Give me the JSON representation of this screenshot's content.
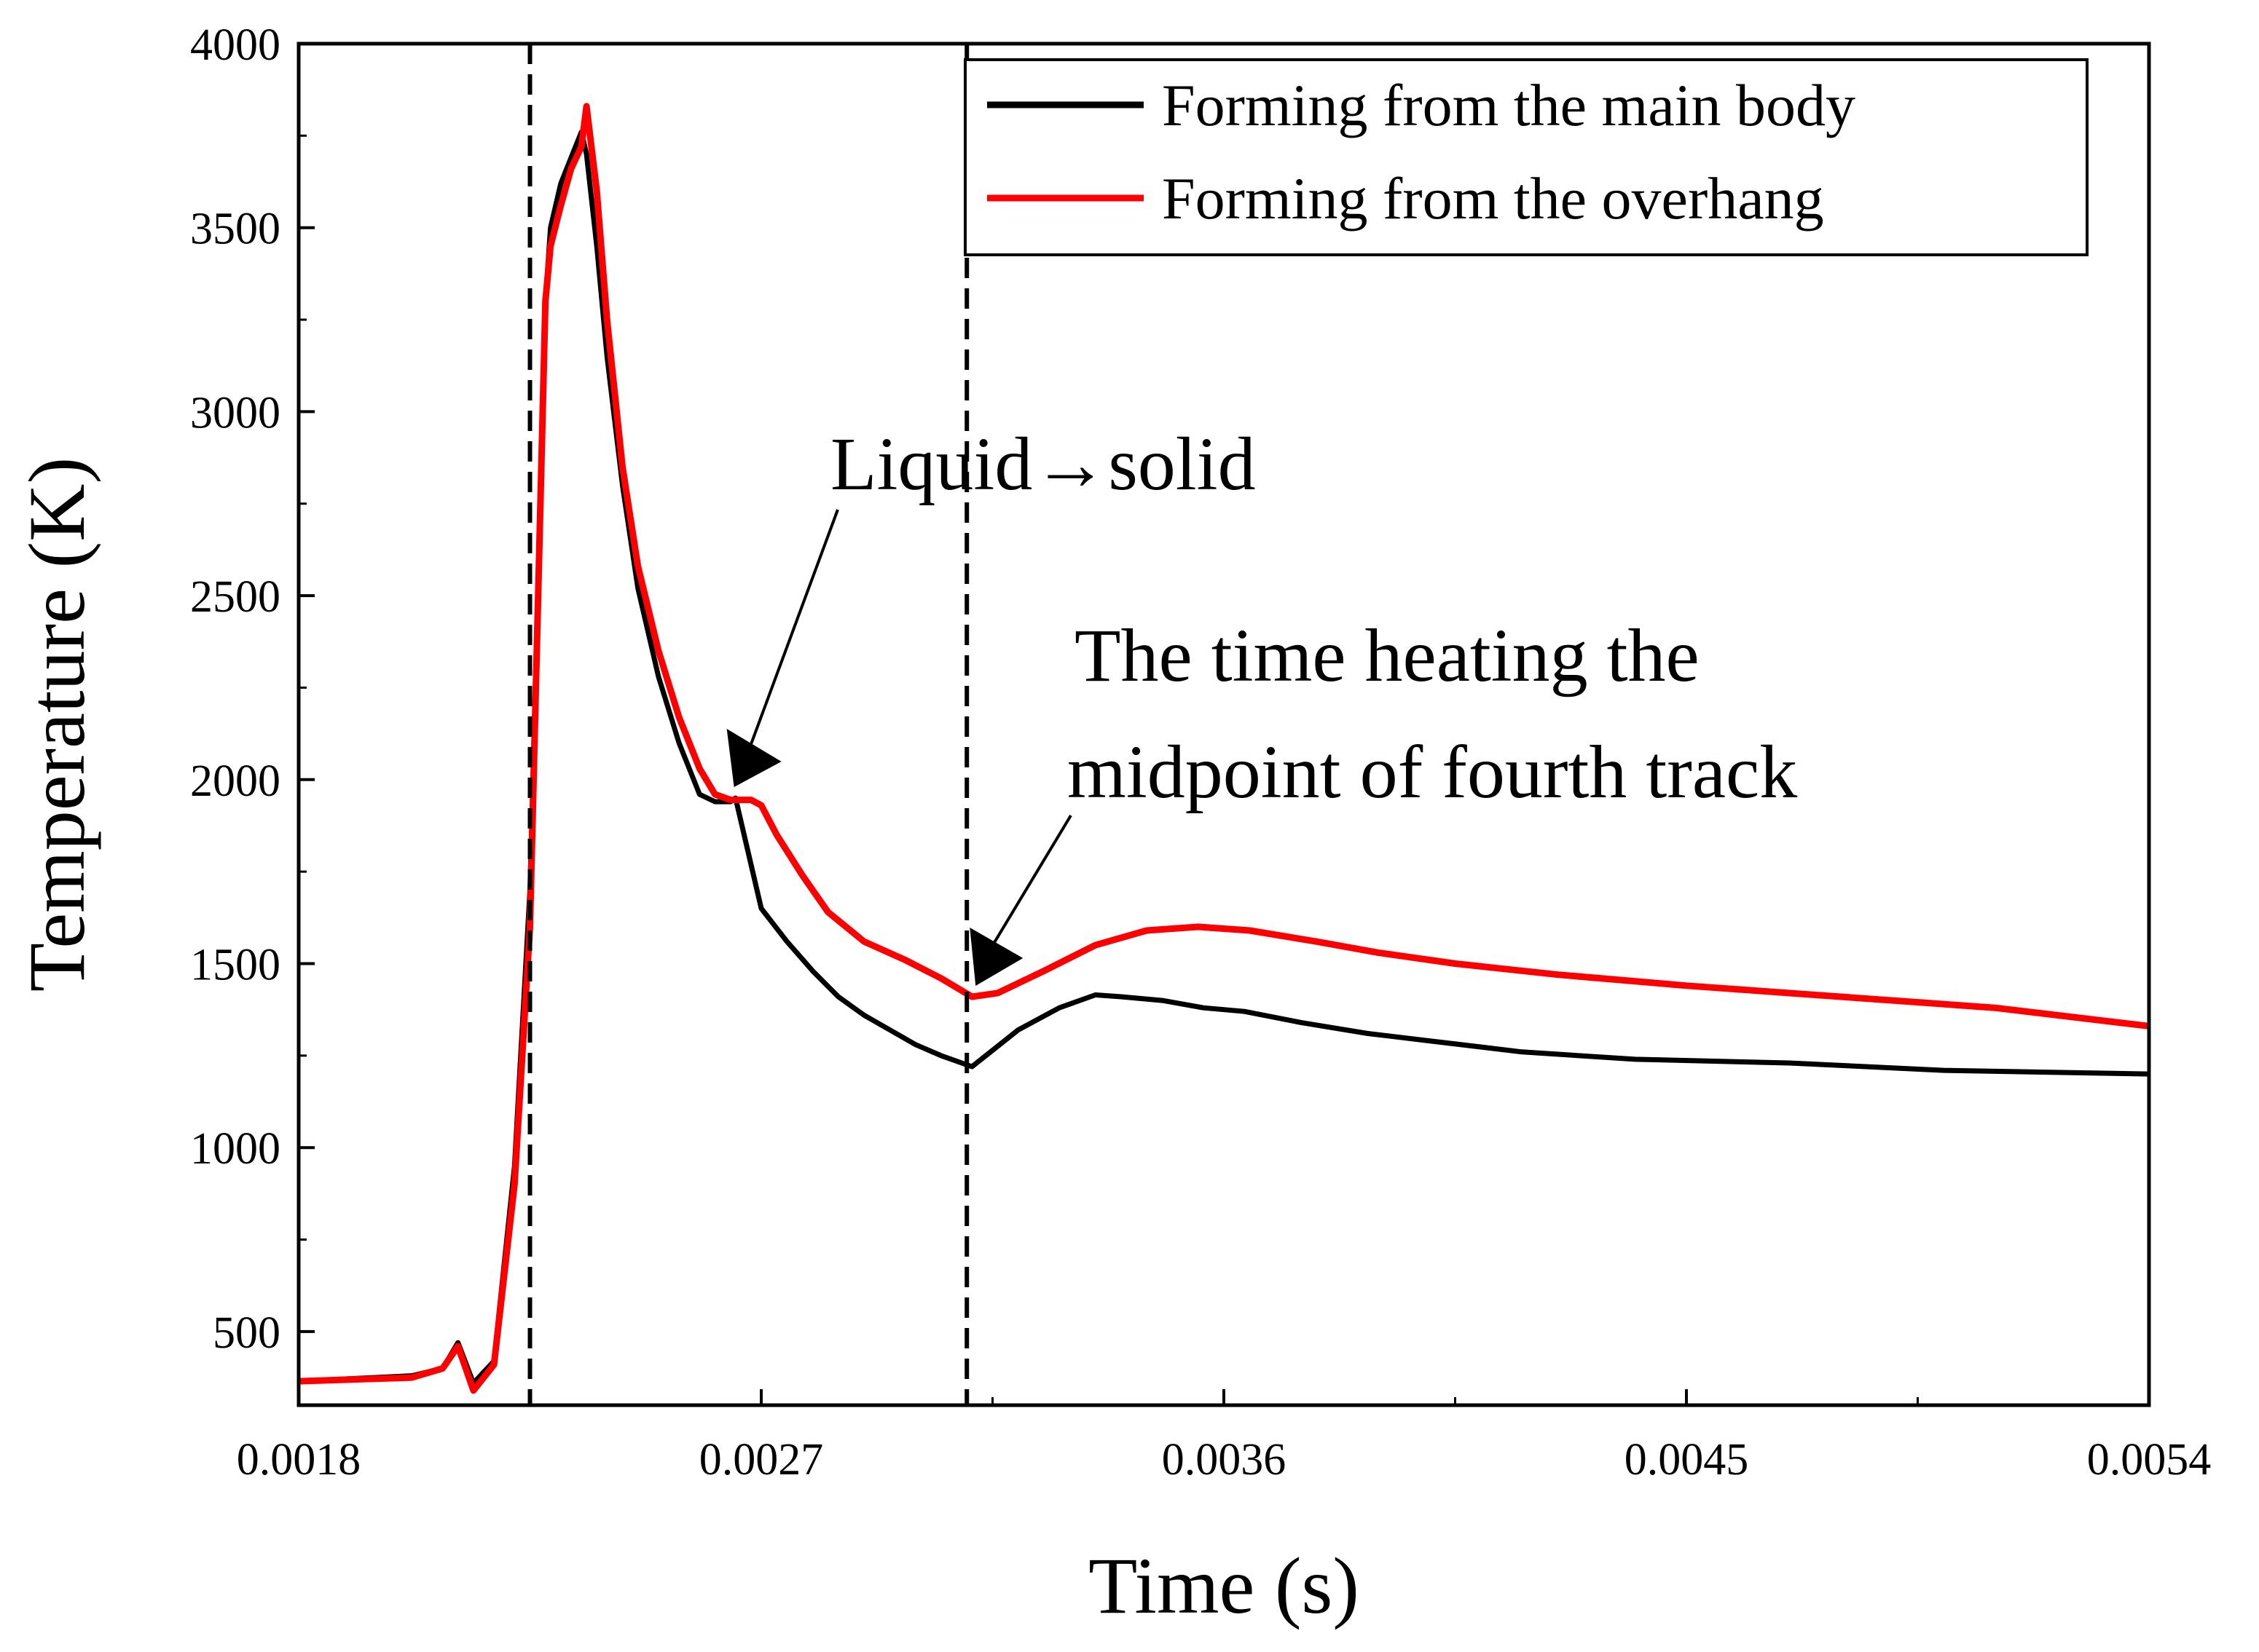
{
  "chart_data": {
    "type": "line",
    "title": "",
    "xlabel": "Time (s)",
    "ylabel": "Temperature (K)",
    "xlim": [
      0.0018,
      0.0054
    ],
    "ylim": [
      300,
      4000
    ],
    "xticks": [
      0.0018,
      0.0027,
      0.0036,
      0.0045,
      0.0054
    ],
    "xtick_labels": [
      "0.0018",
      "0.0027",
      "0.0036",
      "0.0045",
      "0.0054"
    ],
    "yticks": [
      500,
      1000,
      1500,
      2000,
      2500,
      3000,
      3500,
      4000
    ],
    "ytick_labels": [
      "500",
      "1000",
      "1500",
      "2000",
      "2500",
      "3000",
      "3500",
      "4000"
    ],
    "legend_position": "top-right",
    "series": [
      {
        "name": "Forming from the main body",
        "color": "#000000",
        "x": [
          0.0018,
          0.00202,
          0.00208,
          0.00211,
          0.00214,
          0.00218,
          0.00222,
          0.00225,
          0.00228,
          0.00229,
          0.00231,
          0.00233,
          0.00235,
          0.00236,
          0.00238,
          0.0024,
          0.00243,
          0.00246,
          0.0025,
          0.00254,
          0.00258,
          0.00261,
          0.00264,
          0.00265,
          0.00267,
          0.0027,
          0.00275,
          0.0028,
          0.00285,
          0.0029,
          0.00295,
          0.003,
          0.00305,
          0.00311,
          0.0032,
          0.00328,
          0.00335,
          0.0034,
          0.00348,
          0.00356,
          0.00364,
          0.00375,
          0.00388,
          0.004,
          0.00418,
          0.0044,
          0.0047,
          0.005,
          0.0054
        ],
        "values": [
          365,
          380,
          400,
          470,
          360,
          420,
          950,
          1700,
          3300,
          3500,
          3620,
          3690,
          3760,
          3700,
          3450,
          3150,
          2800,
          2520,
          2280,
          2100,
          1960,
          1940,
          1940,
          1950,
          1830,
          1650,
          1560,
          1480,
          1410,
          1360,
          1320,
          1280,
          1250,
          1220,
          1320,
          1380,
          1415,
          1410,
          1400,
          1380,
          1370,
          1340,
          1310,
          1290,
          1260,
          1240,
          1230,
          1210,
          1200
        ]
      },
      {
        "name": "Forming from the overhang",
        "color": "#ff0000",
        "x": [
          0.0018,
          0.00202,
          0.00208,
          0.00211,
          0.00214,
          0.00218,
          0.00222,
          0.00225,
          0.00228,
          0.00229,
          0.00231,
          0.00233,
          0.00235,
          0.00236,
          0.00238,
          0.0024,
          0.00243,
          0.00246,
          0.0025,
          0.00254,
          0.00258,
          0.00261,
          0.00264,
          0.00266,
          0.00268,
          0.0027,
          0.00273,
          0.00278,
          0.00283,
          0.0029,
          0.00298,
          0.00305,
          0.00311,
          0.00316,
          0.00325,
          0.00335,
          0.00345,
          0.00355,
          0.00365,
          0.00378,
          0.0039,
          0.00405,
          0.00425,
          0.0045,
          0.0048,
          0.0051,
          0.0054
        ],
        "values": [
          365,
          375,
          400,
          460,
          340,
          410,
          900,
          1600,
          3300,
          3450,
          3560,
          3660,
          3720,
          3830,
          3600,
          3250,
          2850,
          2580,
          2350,
          2170,
          2030,
          1960,
          1945,
          1945,
          1945,
          1930,
          1850,
          1740,
          1640,
          1560,
          1510,
          1460,
          1410,
          1420,
          1480,
          1550,
          1590,
          1600,
          1590,
          1560,
          1530,
          1500,
          1470,
          1440,
          1410,
          1380,
          1330
        ]
      }
    ],
    "vertical_markers": [
      0.00225,
      0.0031
    ],
    "annotations": [
      {
        "text": "Liquid→solid",
        "x": 0.00264,
        "y": 1960
      },
      {
        "line1": "The time heating the",
        "line2": "midpoint of fourth track",
        "x": 0.00311,
        "y": 1420
      }
    ]
  }
}
